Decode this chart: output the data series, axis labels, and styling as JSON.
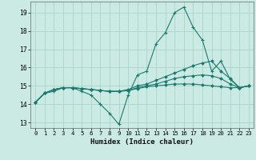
{
  "title": "",
  "xlabel": "Humidex (Indice chaleur)",
  "bg_color": "#cceae4",
  "grid_color": "#aad4cc",
  "line_color": "#1a7a6e",
  "xlim": [
    -0.5,
    23.5
  ],
  "ylim": [
    12.7,
    19.6
  ],
  "yticks": [
    13,
    14,
    15,
    16,
    17,
    18,
    19
  ],
  "xticks": [
    0,
    1,
    2,
    3,
    4,
    5,
    6,
    7,
    8,
    9,
    10,
    11,
    12,
    13,
    14,
    15,
    16,
    17,
    18,
    19,
    20,
    21,
    22,
    23
  ],
  "lines": [
    {
      "x": [
        0,
        1,
        2,
        3,
        4,
        5,
        6,
        7,
        8,
        9,
        10,
        11,
        12,
        13,
        14,
        15,
        16,
        17,
        18,
        19,
        20,
        21,
        22,
        23
      ],
      "y": [
        14.1,
        14.6,
        14.7,
        14.9,
        14.9,
        14.7,
        14.5,
        14.0,
        13.5,
        12.9,
        14.5,
        15.6,
        15.8,
        17.3,
        17.9,
        19.0,
        19.3,
        18.2,
        17.5,
        15.8,
        16.35,
        15.35,
        14.9,
        15.0
      ],
      "marker": "+"
    },
    {
      "x": [
        0,
        1,
        2,
        3,
        4,
        5,
        6,
        7,
        8,
        9,
        10,
        11,
        12,
        13,
        14,
        15,
        16,
        17,
        18,
        19,
        20,
        21,
        22,
        23
      ],
      "y": [
        14.1,
        14.6,
        14.8,
        14.9,
        14.9,
        14.85,
        14.8,
        14.75,
        14.7,
        14.7,
        14.8,
        15.0,
        15.1,
        15.3,
        15.5,
        15.7,
        15.9,
        16.1,
        16.25,
        16.35,
        15.8,
        15.4,
        14.9,
        15.0
      ],
      "marker": "D"
    },
    {
      "x": [
        0,
        1,
        2,
        3,
        4,
        5,
        6,
        7,
        8,
        9,
        10,
        11,
        12,
        13,
        14,
        15,
        16,
        17,
        18,
        19,
        20,
        21,
        22,
        23
      ],
      "y": [
        14.1,
        14.6,
        14.8,
        14.9,
        14.9,
        14.85,
        14.8,
        14.75,
        14.7,
        14.7,
        14.75,
        14.9,
        15.0,
        15.1,
        15.25,
        15.4,
        15.5,
        15.55,
        15.6,
        15.55,
        15.4,
        15.1,
        14.9,
        15.0
      ],
      "marker": "D"
    },
    {
      "x": [
        0,
        1,
        2,
        3,
        4,
        5,
        6,
        7,
        8,
        9,
        10,
        11,
        12,
        13,
        14,
        15,
        16,
        17,
        18,
        19,
        20,
        21,
        22,
        23
      ],
      "y": [
        14.1,
        14.6,
        14.8,
        14.9,
        14.9,
        14.85,
        14.8,
        14.75,
        14.7,
        14.7,
        14.75,
        14.85,
        14.95,
        15.0,
        15.05,
        15.1,
        15.1,
        15.1,
        15.05,
        15.0,
        14.95,
        14.9,
        14.9,
        15.0
      ],
      "marker": "D"
    }
  ]
}
